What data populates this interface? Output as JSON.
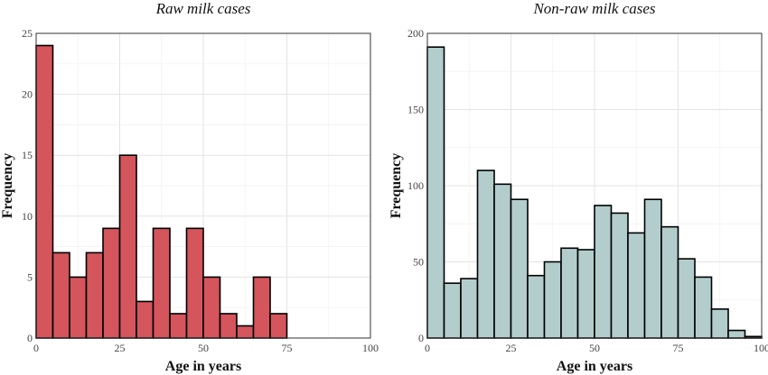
{
  "chart_data": [
    {
      "type": "bar",
      "title": "Raw milk cases",
      "xlabel": "Age in years",
      "ylabel": "Frequency",
      "xlim": [
        0,
        100
      ],
      "ylim": [
        0,
        25
      ],
      "xticks": [
        0,
        25,
        50,
        75,
        100
      ],
      "yticks": [
        0,
        5,
        10,
        15,
        20,
        25
      ],
      "bin_width": 5,
      "bins": [
        0,
        5,
        10,
        15,
        20,
        25,
        30,
        35,
        40,
        45,
        50,
        55,
        60,
        65,
        70
      ],
      "values": [
        24,
        7,
        5,
        7,
        9,
        15,
        3,
        9,
        2,
        9,
        5,
        2,
        1,
        5,
        2
      ],
      "fill": "#d4555c",
      "grid": true
    },
    {
      "type": "bar",
      "title": "Non-raw milk cases",
      "xlabel": "Age in years",
      "ylabel": "Frequency",
      "xlim": [
        0,
        100
      ],
      "ylim": [
        0,
        200
      ],
      "xticks": [
        0,
        25,
        50,
        75,
        100
      ],
      "yticks": [
        0,
        50,
        100,
        150,
        200
      ],
      "bin_width": 5,
      "bins": [
        0,
        5,
        10,
        15,
        20,
        25,
        30,
        35,
        40,
        45,
        50,
        55,
        60,
        65,
        70,
        75,
        80,
        85,
        90,
        95
      ],
      "values": [
        191,
        36,
        39,
        110,
        101,
        91,
        41,
        50,
        59,
        58,
        87,
        82,
        69,
        91,
        73,
        52,
        40,
        19,
        5,
        1
      ],
      "fill": "#b2cdcc",
      "grid": true
    }
  ]
}
